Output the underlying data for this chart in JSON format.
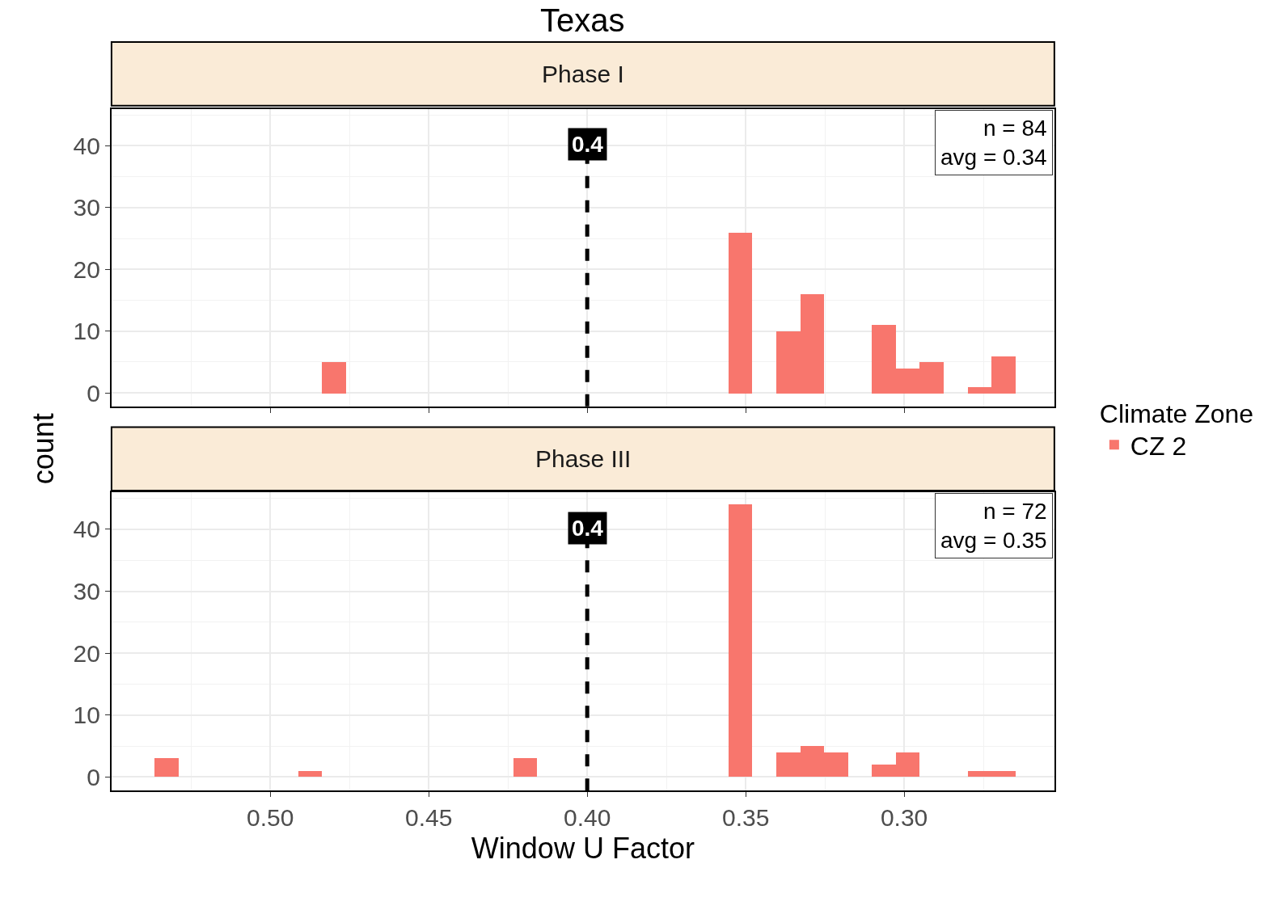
{
  "chart_data": [
    {
      "type": "histogram",
      "title": "Texas",
      "subtitle": "Phase I",
      "ylabel": "count",
      "legend_title": "Climate Zone",
      "legend": "right",
      "bins": [
        0.2649,
        0.2725,
        0.28,
        0.2875,
        0.2951,
        0.3026,
        0.3102,
        0.3177,
        0.3253,
        0.3328,
        0.3404,
        0.3479,
        0.3554,
        0.363,
        0.3705,
        0.3781,
        0.3856,
        0.3932,
        0.4007,
        0.4083,
        0.4158,
        0.4233,
        0.4309,
        0.4384,
        0.446,
        0.4535,
        0.4611,
        0.4686,
        0.4762,
        0.4837,
        0.4912,
        0.4988,
        0.5063,
        0.5139,
        0.5214,
        0.529,
        0.5365
      ],
      "series": [
        {
          "name": "CZ 2",
          "color": "#f8766d",
          "values": [
            6,
            1,
            0,
            5,
            4,
            11,
            0,
            0,
            16,
            10,
            0,
            26,
            0,
            0,
            0,
            0,
            0,
            0,
            0,
            0,
            0,
            0,
            0,
            0,
            0,
            0,
            0,
            0,
            5,
            0,
            0,
            0,
            0,
            0,
            0,
            0
          ]
        }
      ],
      "xlim": [
        0.5501,
        0.2526
      ],
      "xticks": [
        {
          "value": 0.5,
          "label": null
        },
        {
          "value": 0.45,
          "label": null
        },
        {
          "value": 0.4,
          "label": null
        },
        {
          "value": 0.35,
          "label": null
        },
        {
          "value": 0.3,
          "label": null
        }
      ],
      "ylim": [
        -2.2,
        46
      ],
      "yticks": [
        0,
        10,
        20,
        30,
        40
      ],
      "grid": true,
      "tick_labels": "y",
      "ref_lines": [
        {
          "axis": "x",
          "value": 0.4,
          "label": "0.4",
          "color": "#000000",
          "line_style": "dashed"
        }
      ],
      "annotations": [
        "n = 84",
        "avg = 0.34"
      ]
    },
    {
      "type": "histogram",
      "subtitle": "Phase III",
      "xlabel": "Window U Factor",
      "bins": [
        0.2649,
        0.2725,
        0.28,
        0.2875,
        0.2951,
        0.3026,
        0.3102,
        0.3177,
        0.3253,
        0.3328,
        0.3404,
        0.3479,
        0.3554,
        0.363,
        0.3705,
        0.3781,
        0.3856,
        0.3932,
        0.4007,
        0.4083,
        0.4158,
        0.4233,
        0.4309,
        0.4384,
        0.446,
        0.4535,
        0.4611,
        0.4686,
        0.4762,
        0.4837,
        0.4912,
        0.4988,
        0.5063,
        0.5139,
        0.5214,
        0.529,
        0.5365
      ],
      "series": [
        {
          "color": "#f8766d",
          "values": [
            1,
            1,
            0,
            0,
            4,
            2,
            0,
            4,
            5,
            4,
            0,
            44,
            0,
            0,
            0,
            0,
            0,
            0,
            0,
            0,
            3,
            0,
            0,
            0,
            0,
            0,
            0,
            0,
            0,
            1,
            0,
            0,
            0,
            0,
            0,
            3
          ]
        }
      ],
      "xlim": [
        0.5501,
        0.2526
      ],
      "xticks": [
        {
          "value": 0.5,
          "label": "0.50"
        },
        {
          "value": 0.45,
          "label": "0.45"
        },
        {
          "value": 0.4,
          "label": "0.40"
        },
        {
          "value": 0.35,
          "label": "0.35"
        },
        {
          "value": 0.3,
          "label": "0.30"
        }
      ],
      "ylim": [
        -2.2,
        46
      ],
      "yticks": [
        0,
        10,
        20,
        30,
        40
      ],
      "grid": true,
      "ref_lines": [
        {
          "axis": "x",
          "value": 0.4,
          "label": "0.4",
          "color": "#000000",
          "line_style": "dashed"
        }
      ],
      "annotations": [
        "n = 72",
        "avg = 0.35"
      ]
    }
  ]
}
